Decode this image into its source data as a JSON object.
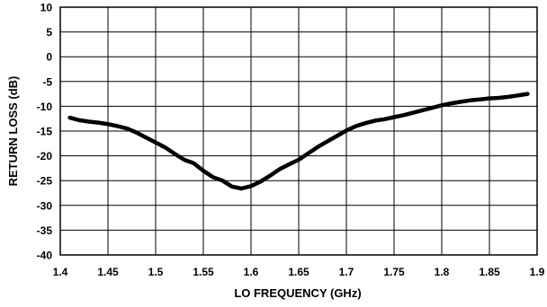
{
  "chart_data": {
    "type": "line",
    "title": "",
    "xlabel": "LO FREQUENCY (GHz)",
    "ylabel": "RETURN LOSS (dB)",
    "xlim": [
      1.4,
      1.9
    ],
    "ylim": [
      -40,
      10
    ],
    "xticks": [
      1.4,
      1.45,
      1.5,
      1.55,
      1.6,
      1.65,
      1.7,
      1.75,
      1.8,
      1.85,
      1.9
    ],
    "xtick_labels": [
      "1.4",
      "1.45",
      "1.5",
      "1.55",
      "1.6",
      "1.65",
      "1.7",
      "1.75",
      "1.8",
      "1.85",
      "1.9"
    ],
    "yticks": [
      10,
      5,
      0,
      -5,
      -10,
      -15,
      -20,
      -25,
      -30,
      -35,
      -40
    ],
    "ytick_labels": [
      "10",
      "5",
      "0",
      "-5",
      "-10",
      "-15",
      "-20",
      "-25",
      "-30",
      "-35",
      "-40"
    ],
    "grid": true,
    "colors": {
      "line": "#000000",
      "grid": "#000000",
      "background": "#ffffff"
    },
    "series": [
      {
        "x": [
          1.41,
          1.42,
          1.43,
          1.44,
          1.45,
          1.46,
          1.47,
          1.48,
          1.49,
          1.5,
          1.51,
          1.52,
          1.53,
          1.54,
          1.55,
          1.56,
          1.57,
          1.58,
          1.59,
          1.6,
          1.61,
          1.62,
          1.63,
          1.64,
          1.65,
          1.66,
          1.67,
          1.68,
          1.69,
          1.7,
          1.71,
          1.72,
          1.73,
          1.74,
          1.75,
          1.76,
          1.77,
          1.78,
          1.79,
          1.8,
          1.81,
          1.82,
          1.83,
          1.84,
          1.85,
          1.86,
          1.87,
          1.88,
          1.89
        ],
        "y": [
          -12.3,
          -12.8,
          -13.1,
          -13.3,
          -13.6,
          -14.0,
          -14.5,
          -15.3,
          -16.3,
          -17.3,
          -18.3,
          -19.6,
          -20.8,
          -21.5,
          -23.0,
          -24.3,
          -25.0,
          -26.2,
          -26.6,
          -26.1,
          -25.2,
          -24.0,
          -22.7,
          -21.7,
          -20.8,
          -19.5,
          -18.2,
          -17.1,
          -16.0,
          -14.9,
          -14.0,
          -13.4,
          -12.9,
          -12.6,
          -12.2,
          -11.8,
          -11.3,
          -10.8,
          -10.3,
          -9.8,
          -9.4,
          -9.1,
          -8.8,
          -8.6,
          -8.4,
          -8.3,
          -8.1,
          -7.8,
          -7.5
        ]
      }
    ]
  }
}
